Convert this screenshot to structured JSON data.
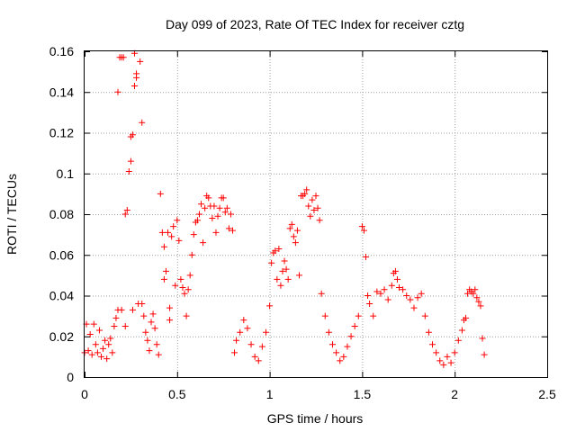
{
  "chart_data": {
    "type": "scatter",
    "title": "Day 099 of 2023, Rate Of TEC Index for receiver cztg",
    "xlabel": "GPS time / hours",
    "ylabel": "ROTI / TECUs",
    "xlim": [
      0,
      2.5
    ],
    "ylim": [
      0,
      0.16
    ],
    "xticks": [
      0,
      0.5,
      1,
      1.5,
      2,
      2.5
    ],
    "xtick_labels": [
      "0",
      "0.5",
      "1",
      "1.5",
      "2",
      "2.5"
    ],
    "yticks": [
      0,
      0.02,
      0.04,
      0.06,
      0.08,
      0.1,
      0.12,
      0.14,
      0.16
    ],
    "ytick_labels": [
      "0",
      "0.02",
      "0.04",
      "0.06",
      "0.08",
      "0.1",
      "0.12",
      "0.14",
      "0.16"
    ],
    "grid": true,
    "marker": "+",
    "series": [
      {
        "name": "ROTI",
        "color": "#ff0000",
        "points": [
          [
            0.0,
            0.012
          ],
          [
            0.01,
            0.026
          ],
          [
            0.02,
            0.013
          ],
          [
            0.03,
            0.021
          ],
          [
            0.04,
            0.011
          ],
          [
            0.05,
            0.026
          ],
          [
            0.06,
            0.016
          ],
          [
            0.07,
            0.012
          ],
          [
            0.08,
            0.023
          ],
          [
            0.09,
            0.01
          ],
          [
            0.1,
            0.014
          ],
          [
            0.11,
            0.018
          ],
          [
            0.12,
            0.009
          ],
          [
            0.13,
            0.016
          ],
          [
            0.14,
            0.019
          ],
          [
            0.15,
            0.012
          ],
          [
            0.16,
            0.025
          ],
          [
            0.17,
            0.029
          ],
          [
            0.18,
            0.033
          ],
          [
            0.18,
            0.14
          ],
          [
            0.19,
            0.157
          ],
          [
            0.2,
            0.157
          ],
          [
            0.2,
            0.033
          ],
          [
            0.21,
            0.157
          ],
          [
            0.22,
            0.08
          ],
          [
            0.22,
            0.025
          ],
          [
            0.23,
            0.082
          ],
          [
            0.24,
            0.101
          ],
          [
            0.25,
            0.106
          ],
          [
            0.25,
            0.118
          ],
          [
            0.26,
            0.119
          ],
          [
            0.26,
            0.033
          ],
          [
            0.27,
            0.159
          ],
          [
            0.27,
            0.143
          ],
          [
            0.28,
            0.149
          ],
          [
            0.28,
            0.147
          ],
          [
            0.29,
            0.036
          ],
          [
            0.3,
            0.155
          ],
          [
            0.31,
            0.125
          ],
          [
            0.31,
            0.036
          ],
          [
            0.32,
            0.03
          ],
          [
            0.33,
            0.022
          ],
          [
            0.34,
            0.018
          ],
          [
            0.35,
            0.013
          ],
          [
            0.36,
            0.027
          ],
          [
            0.37,
            0.031
          ],
          [
            0.38,
            0.024
          ],
          [
            0.39,
            0.016
          ],
          [
            0.4,
            0.011
          ],
          [
            0.41,
            0.09
          ],
          [
            0.42,
            0.071
          ],
          [
            0.43,
            0.064
          ],
          [
            0.43,
            0.048
          ],
          [
            0.44,
            0.052
          ],
          [
            0.45,
            0.071
          ],
          [
            0.46,
            0.034
          ],
          [
            0.46,
            0.028
          ],
          [
            0.47,
            0.069
          ],
          [
            0.48,
            0.074
          ],
          [
            0.49,
            0.045
          ],
          [
            0.5,
            0.077
          ],
          [
            0.51,
            0.067
          ],
          [
            0.52,
            0.048
          ],
          [
            0.53,
            0.044
          ],
          [
            0.54,
            0.041
          ],
          [
            0.55,
            0.03
          ],
          [
            0.56,
            0.043
          ],
          [
            0.57,
            0.05
          ],
          [
            0.58,
            0.06
          ],
          [
            0.59,
            0.07
          ],
          [
            0.6,
            0.076
          ],
          [
            0.61,
            0.077
          ],
          [
            0.62,
            0.08
          ],
          [
            0.63,
            0.085
          ],
          [
            0.64,
            0.066
          ],
          [
            0.65,
            0.083
          ],
          [
            0.66,
            0.089
          ],
          [
            0.67,
            0.088
          ],
          [
            0.68,
            0.084
          ],
          [
            0.69,
            0.078
          ],
          [
            0.7,
            0.084
          ],
          [
            0.71,
            0.071
          ],
          [
            0.72,
            0.079
          ],
          [
            0.73,
            0.083
          ],
          [
            0.74,
            0.088
          ],
          [
            0.75,
            0.088
          ],
          [
            0.76,
            0.081
          ],
          [
            0.77,
            0.083
          ],
          [
            0.78,
            0.073
          ],
          [
            0.79,
            0.08
          ],
          [
            0.8,
            0.072
          ],
          [
            0.81,
            0.012
          ],
          [
            0.82,
            0.018
          ],
          [
            0.84,
            0.022
          ],
          [
            0.86,
            0.028
          ],
          [
            0.88,
            0.024
          ],
          [
            0.9,
            0.016
          ],
          [
            0.92,
            0.01
          ],
          [
            0.94,
            0.008
          ],
          [
            0.96,
            0.015
          ],
          [
            0.98,
            0.022
          ],
          [
            1.0,
            0.035
          ],
          [
            1.01,
            0.056
          ],
          [
            1.02,
            0.061
          ],
          [
            1.03,
            0.062
          ],
          [
            1.04,
            0.048
          ],
          [
            1.05,
            0.063
          ],
          [
            1.06,
            0.045
          ],
          [
            1.07,
            0.052
          ],
          [
            1.08,
            0.057
          ],
          [
            1.09,
            0.053
          ],
          [
            1.1,
            0.048
          ],
          [
            1.11,
            0.073
          ],
          [
            1.12,
            0.075
          ],
          [
            1.13,
            0.069
          ],
          [
            1.14,
            0.066
          ],
          [
            1.15,
            0.072
          ],
          [
            1.16,
            0.05
          ],
          [
            1.17,
            0.089
          ],
          [
            1.18,
            0.089
          ],
          [
            1.19,
            0.09
          ],
          [
            1.2,
            0.092
          ],
          [
            1.21,
            0.084
          ],
          [
            1.22,
            0.079
          ],
          [
            1.23,
            0.087
          ],
          [
            1.24,
            0.082
          ],
          [
            1.25,
            0.089
          ],
          [
            1.26,
            0.083
          ],
          [
            1.27,
            0.077
          ],
          [
            1.28,
            0.041
          ],
          [
            1.3,
            0.03
          ],
          [
            1.32,
            0.022
          ],
          [
            1.34,
            0.016
          ],
          [
            1.36,
            0.012
          ],
          [
            1.38,
            0.008
          ],
          [
            1.4,
            0.01
          ],
          [
            1.42,
            0.015
          ],
          [
            1.44,
            0.02
          ],
          [
            1.46,
            0.025
          ],
          [
            1.48,
            0.03
          ],
          [
            1.5,
            0.074
          ],
          [
            1.51,
            0.072
          ],
          [
            1.52,
            0.059
          ],
          [
            1.53,
            0.04
          ],
          [
            1.54,
            0.036
          ],
          [
            1.56,
            0.03
          ],
          [
            1.58,
            0.042
          ],
          [
            1.6,
            0.041
          ],
          [
            1.62,
            0.043
          ],
          [
            1.64,
            0.038
          ],
          [
            1.66,
            0.045
          ],
          [
            1.67,
            0.051
          ],
          [
            1.68,
            0.052
          ],
          [
            1.69,
            0.048
          ],
          [
            1.7,
            0.044
          ],
          [
            1.72,
            0.043
          ],
          [
            1.74,
            0.04
          ],
          [
            1.76,
            0.038
          ],
          [
            1.78,
            0.034
          ],
          [
            1.8,
            0.039
          ],
          [
            1.82,
            0.041
          ],
          [
            1.84,
            0.03
          ],
          [
            1.86,
            0.022
          ],
          [
            1.88,
            0.016
          ],
          [
            1.9,
            0.012
          ],
          [
            1.92,
            0.008
          ],
          [
            1.94,
            0.006
          ],
          [
            1.96,
            0.01
          ],
          [
            1.98,
            0.007
          ],
          [
            2.0,
            0.012
          ],
          [
            2.02,
            0.018
          ],
          [
            2.04,
            0.023
          ],
          [
            2.05,
            0.028
          ],
          [
            2.06,
            0.029
          ],
          [
            2.07,
            0.041
          ],
          [
            2.08,
            0.043
          ],
          [
            2.09,
            0.042
          ],
          [
            2.1,
            0.041
          ],
          [
            2.11,
            0.043
          ],
          [
            2.12,
            0.039
          ],
          [
            2.13,
            0.037
          ],
          [
            2.14,
            0.035
          ],
          [
            2.15,
            0.019
          ],
          [
            2.16,
            0.011
          ]
        ]
      }
    ]
  }
}
